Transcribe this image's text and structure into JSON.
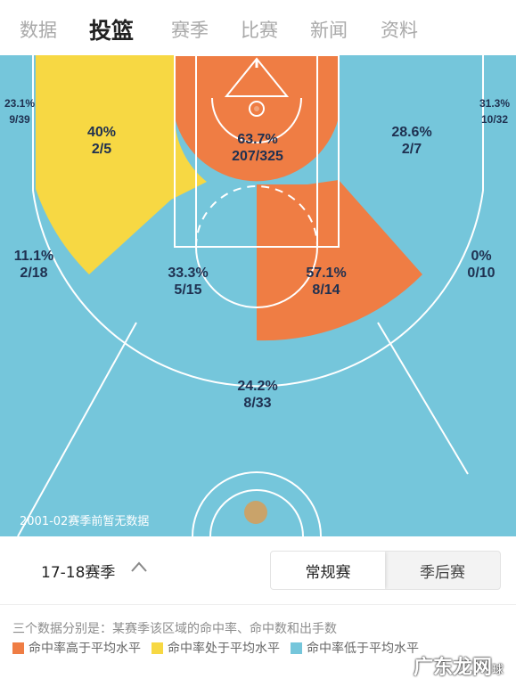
{
  "tabs": [
    "数据",
    "投篮",
    "赛季",
    "比赛",
    "新闻",
    "资料"
  ],
  "active_tab": "投篮",
  "zones": {
    "left_corner": {
      "pct": "23.1%",
      "made_att": "9/39"
    },
    "left_mid": {
      "pct": "40%",
      "made_att": "2/5"
    },
    "paint": {
      "pct": "63.7%",
      "made_att": "207/325"
    },
    "right_mid": {
      "pct": "28.6%",
      "made_att": "2/7"
    },
    "right_corner": {
      "pct": "31.3%",
      "made_att": "10/32"
    },
    "left_wing3": {
      "pct": "11.1%",
      "made_att": "2/18"
    },
    "left_elbow": {
      "pct": "33.3%",
      "made_att": "5/15"
    },
    "right_elbow": {
      "pct": "57.1%",
      "made_att": "8/14"
    },
    "right_wing3": {
      "pct": "0%",
      "made_att": "0/10"
    },
    "top3": {
      "pct": "24.2%",
      "made_att": "8/33"
    }
  },
  "court_note": "2001-02赛季前暂无数据",
  "season": "17-18赛季",
  "segments": {
    "regular": "常规赛",
    "playoffs": "季后赛"
  },
  "description": "三个数据分别是：某赛季该区域的命中率、命中数和出手数",
  "legend": [
    {
      "label": "命中率高于平均水平",
      "color": "#ef7d44"
    },
    {
      "label": "命中率处于平均水平",
      "color": "#f7d843"
    },
    {
      "label": "命中率低于平均水平",
      "color": "#75c6db"
    }
  ],
  "watermark": {
    "main": "广东龙网",
    "sub": "球"
  },
  "colors": {
    "above": "#ef7d44",
    "average": "#f7d843",
    "below": "#75c6db",
    "text": "#1f3050"
  }
}
